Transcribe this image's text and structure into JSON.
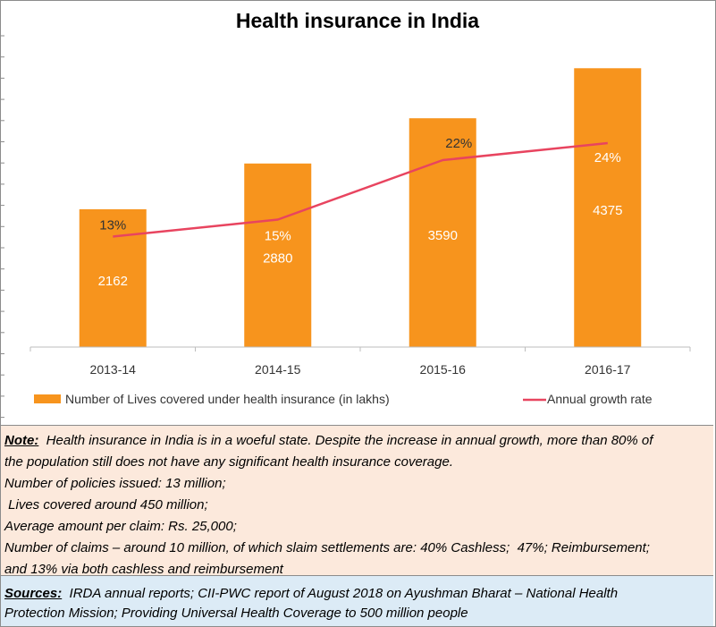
{
  "chart_data": {
    "type": "bar",
    "title": "Health insurance in India",
    "categories": [
      "2013-14",
      "2014-15",
      "2015-16",
      "2016-17"
    ],
    "series": [
      {
        "name": "Number of Lives covered under health insurance (in lakhs)",
        "type": "bar",
        "values": [
          2162,
          2880,
          3590,
          4375
        ],
        "value_labels": [
          "2162",
          "2880",
          "3590",
          "4375"
        ],
        "color": "#f7941d"
      },
      {
        "name": "Annual growth rate",
        "type": "line",
        "values": [
          13,
          15,
          22,
          24
        ],
        "value_labels": [
          "13%",
          "15%",
          "22%",
          "24%"
        ],
        "color": "#e8445f"
      }
    ],
    "ylim": [
      0,
      4800
    ],
    "line_ylim": [
      0,
      36
    ],
    "grid": false,
    "legend_position": "bottom"
  },
  "note": {
    "label": "Note:",
    "text": "Health insurance in India is in a woeful state. Despite the increase in annual growth, more than 80% of",
    "text_cont": "the population still does not have any significant health insurance coverage.",
    "lines": [
      "Number of policies issued: 13 million;",
      " Lives covered around 450 million;",
      "Average amount per claim: Rs. 25,000;",
      "Number of claims – around 10 million, of which slaim settlements are: 40% Cashless;  47%; Reimbursement;",
      "and 13% via both cashless and reimbursement"
    ]
  },
  "sources": {
    "label": "Sources:",
    "text": "IRDA annual reports; CII-PWC report of August 2018 on Ayushman Bharat – National Health",
    "text_cont": "Protection Mission; Providing Universal Health Coverage to 500 million people"
  },
  "colors": {
    "bar": "#f7941d",
    "line": "#e8445f",
    "note_bg": "#fce9dc",
    "sources_bg": "#dcebf6"
  }
}
